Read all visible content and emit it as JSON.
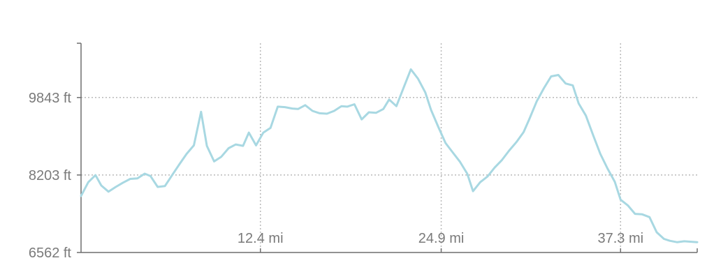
{
  "chart_data": {
    "type": "line",
    "x_unit": "mi",
    "y_unit": "ft",
    "xlim": [
      0,
      42.6
    ],
    "ylim": [
      6562,
      9843
    ],
    "x_ticks": [
      {
        "value": 12.4,
        "label": "12.4 mi"
      },
      {
        "value": 24.9,
        "label": "24.9 mi"
      },
      {
        "value": 37.3,
        "label": "37.3 mi"
      }
    ],
    "y_ticks": [
      {
        "value": 6562,
        "label": "6562 ft"
      },
      {
        "value": 8203,
        "label": "8203 ft"
      },
      {
        "value": 9843,
        "label": "9843 ft"
      }
    ],
    "grid": true,
    "colors": {
      "line": "#a8d8e2",
      "grid": "#b9b9b9",
      "axis": "#6e6e6e",
      "text": "#7a7a7a"
    },
    "series": [
      {
        "x": [
          0,
          0.5,
          1.0,
          1.4,
          1.9,
          2.4,
          2.9,
          3.4,
          3.9,
          4.4,
          4.8,
          5.3,
          5.8,
          6.3,
          6.8,
          7.3,
          7.8,
          8.3,
          8.7,
          9.2,
          9.7,
          10.2,
          10.7,
          11.2,
          11.6,
          12.1,
          12.6,
          13.1,
          13.6,
          14.1,
          14.6,
          15.0,
          15.5,
          16.0,
          16.5,
          17.0,
          17.5,
          18.0,
          18.4,
          18.9,
          19.4,
          19.9,
          20.4,
          20.9,
          21.3,
          21.8,
          22.3,
          22.8,
          23.3,
          23.8,
          24.2,
          24.7,
          25.2,
          25.7,
          26.2,
          26.7,
          27.1,
          27.6,
          28.1,
          28.6,
          29.1,
          29.6,
          30.1,
          30.6,
          31.0,
          31.5,
          32.0,
          32.5,
          33.0,
          33.5,
          34.0,
          34.4,
          34.9,
          35.4,
          35.9,
          36.4,
          36.9,
          37.3,
          37.8,
          38.3,
          38.8,
          39.3,
          39.8,
          40.3,
          40.7,
          41.2,
          41.7,
          42.2,
          42.6
        ],
        "y": [
          7760,
          8050,
          8200,
          7980,
          7850,
          7950,
          8040,
          8120,
          8130,
          8230,
          8180,
          7950,
          7970,
          8200,
          8430,
          8650,
          8830,
          9540,
          8820,
          8490,
          8590,
          8770,
          8850,
          8820,
          9100,
          8830,
          9100,
          9200,
          9650,
          9640,
          9610,
          9600,
          9680,
          9560,
          9510,
          9500,
          9560,
          9660,
          9650,
          9700,
          9380,
          9530,
          9520,
          9600,
          9800,
          9660,
          10050,
          10440,
          10240,
          9950,
          9580,
          9220,
          8880,
          8680,
          8480,
          8230,
          7860,
          8050,
          8170,
          8360,
          8520,
          8720,
          8900,
          9110,
          9390,
          9760,
          10040,
          10290,
          10320,
          10140,
          10100,
          9720,
          9460,
          9050,
          8650,
          8340,
          8060,
          7680,
          7560,
          7380,
          7370,
          7310,
          6990,
          6850,
          6810,
          6780,
          6800,
          6790,
          6780
        ]
      }
    ]
  }
}
